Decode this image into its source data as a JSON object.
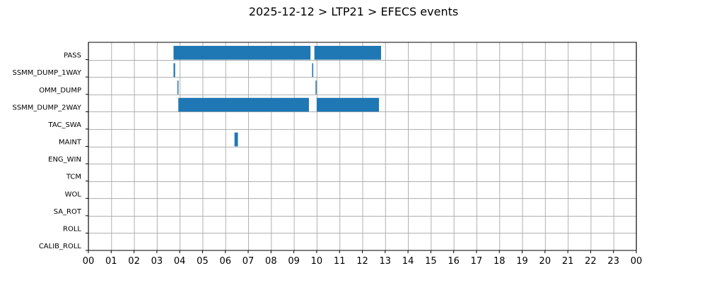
{
  "chart_data": {
    "type": "gantt",
    "title": "2025-12-12 > LTP21 > EFECS events",
    "x_unit": "hour of day",
    "xlim": [
      0,
      24
    ],
    "x_tick_labels": [
      "00",
      "01",
      "02",
      "03",
      "04",
      "05",
      "06",
      "07",
      "08",
      "09",
      "10",
      "11",
      "12",
      "13",
      "14",
      "15",
      "16",
      "17",
      "18",
      "19",
      "20",
      "21",
      "22",
      "23",
      "00"
    ],
    "categories": [
      "PASS",
      "SSMM_DUMP_1WAY",
      "OMM_DUMP",
      "SSMM_DUMP_2WAY",
      "TAC_SWA",
      "MAINT",
      "ENG_WIN",
      "TCM",
      "WOL",
      "SA_ROT",
      "ROLL",
      "CALIB_ROLL"
    ],
    "grid": true,
    "bar_color": "#1f77b4",
    "events": [
      {
        "category": "PASS",
        "start": 3.73,
        "end": 9.73
      },
      {
        "category": "PASS",
        "start": 9.9,
        "end": 12.82
      },
      {
        "category": "SSMM_DUMP_1WAY",
        "start": 3.73,
        "end": 3.8
      },
      {
        "category": "SSMM_DUMP_1WAY",
        "start": 9.8,
        "end": 9.85
      },
      {
        "category": "OMM_DUMP",
        "start": 3.9,
        "end": 3.94
      },
      {
        "category": "OMM_DUMP",
        "start": 9.95,
        "end": 9.99
      },
      {
        "category": "SSMM_DUMP_2WAY",
        "start": 3.94,
        "end": 9.66
      },
      {
        "category": "SSMM_DUMP_2WAY",
        "start": 10.0,
        "end": 12.73
      },
      {
        "category": "MAINT",
        "start": 6.4,
        "end": 6.55
      }
    ]
  }
}
